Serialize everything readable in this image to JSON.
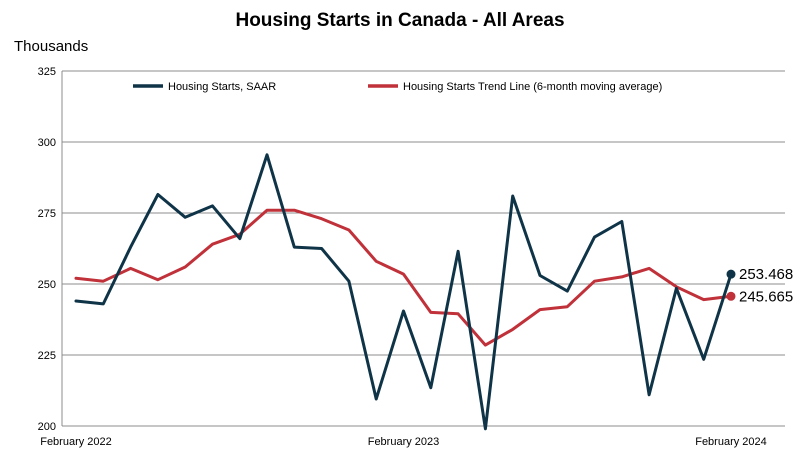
{
  "chart_data": {
    "type": "line",
    "title": "Housing Starts in Canada - All Areas",
    "ylabel": "Thousands",
    "xlabel": "",
    "ylim": [
      200,
      325
    ],
    "yticks": [
      200,
      225,
      250,
      275,
      300,
      325
    ],
    "x": [
      "2022-02",
      "2022-03",
      "2022-04",
      "2022-05",
      "2022-06",
      "2022-07",
      "2022-08",
      "2022-09",
      "2022-10",
      "2022-11",
      "2022-12",
      "2023-01",
      "2023-02",
      "2023-03",
      "2023-04",
      "2023-05",
      "2023-06",
      "2023-07",
      "2023-08",
      "2023-09",
      "2023-10",
      "2023-11",
      "2023-12",
      "2024-01",
      "2024-02"
    ],
    "xtick_labels": [
      {
        "x": "2022-02",
        "label": "February 2022"
      },
      {
        "x": "2023-02",
        "label": "February 2023"
      },
      {
        "x": "2024-02",
        "label": "February 2024"
      }
    ],
    "grid": "horizontal",
    "legend_position": "top",
    "series": [
      {
        "name": "Housing Starts, SAAR",
        "color": "#0f3448",
        "values": [
          244,
          243,
          263,
          281.5,
          273.5,
          277.5,
          266,
          295.5,
          263,
          262.5,
          251,
          209.5,
          240.5,
          213.5,
          261.5,
          199,
          281,
          253,
          247.5,
          266.5,
          272,
          211,
          248.5,
          223.5,
          253.468
        ],
        "end_label": "253.468"
      },
      {
        "name": "Housing Starts Trend Line (6-month moving average)",
        "color": "#c0313a",
        "values": [
          252,
          251,
          255.5,
          251.5,
          256,
          264,
          267.5,
          276,
          276,
          273,
          269,
          258,
          253.5,
          240,
          239.5,
          228.5,
          234,
          241,
          242,
          251,
          252.5,
          255.5,
          249,
          244.5,
          245.665
        ],
        "end_label": "245.665"
      }
    ]
  }
}
